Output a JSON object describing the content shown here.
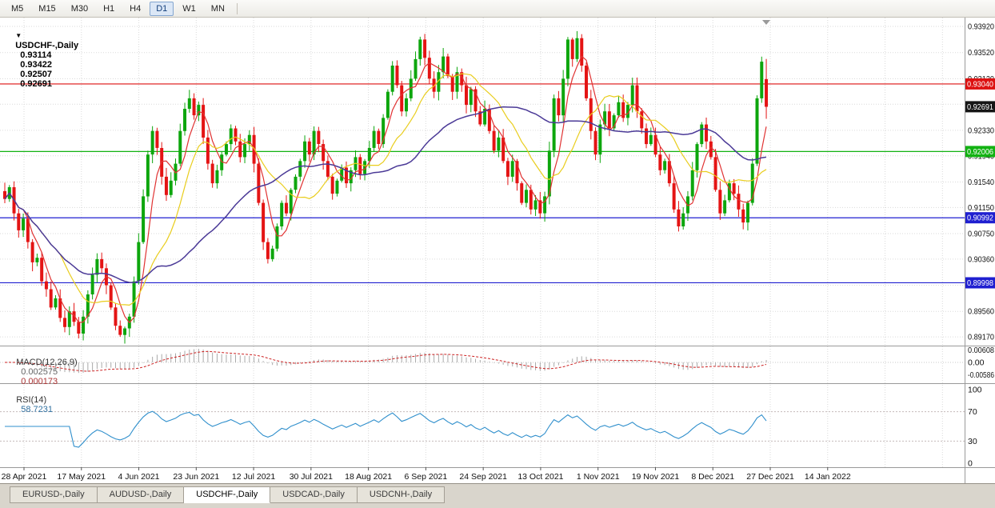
{
  "toolbar": {
    "timeframes": [
      {
        "label": "M5",
        "active": false
      },
      {
        "label": "M15",
        "active": false
      },
      {
        "label": "M30",
        "active": false
      },
      {
        "label": "H1",
        "active": false
      },
      {
        "label": "H4",
        "active": false
      },
      {
        "label": "D1",
        "active": true
      },
      {
        "label": "W1",
        "active": false
      },
      {
        "label": "MN",
        "active": false
      }
    ]
  },
  "title": {
    "triangle": "▼",
    "symbol": "USDCHF-,Daily",
    "open": "0.93114",
    "high": "0.93422",
    "low": "0.92507",
    "close": "0.92691"
  },
  "price_axis": {
    "ticks": [
      "0.93920",
      "0.93520",
      "0.93120",
      "0.92730",
      "0.92330",
      "0.91940",
      "0.91540",
      "0.91150",
      "0.90750",
      "0.90360",
      "0.89960",
      "0.89560",
      "0.89170"
    ],
    "badges": [
      {
        "label": "0.93040",
        "price": 0.9304,
        "color": "#dd1111",
        "name": "resistance-line-badge"
      },
      {
        "label": "0.92006",
        "price": 0.92006,
        "color": "#12b212",
        "name": "support-line-badge-green"
      },
      {
        "label": "0.90992",
        "price": 0.90992,
        "color": "#1f1fd0",
        "name": "support-line-badge-blue-1"
      },
      {
        "label": "0.89998",
        "price": 0.89998,
        "color": "#1f1fd0",
        "name": "support-line-badge-blue-2"
      },
      {
        "label": "0.92691",
        "price": 0.92691,
        "color": "#151515",
        "name": "current-price-badge"
      }
    ]
  },
  "dates": [
    "28 Apr 2021",
    "17 May 2021",
    "4 Jun 2021",
    "23 Jun 2021",
    "12 Jul 2021",
    "30 Jul 2021",
    "18 Aug 2021",
    "6 Sep 2021",
    "24 Sep 2021",
    "13 Oct 2021",
    "1 Nov 2021",
    "19 Nov 2021",
    "8 Dec 2021",
    "27 Dec 2021",
    "14 Jan 2022"
  ],
  "chart_data": {
    "type": "candlestick",
    "symbol": "USDCHF-",
    "timeframe": "Daily",
    "title": "USDCHF-,Daily",
    "ylim": [
      0.8904,
      0.94055
    ],
    "first_open": 0.914,
    "closes": [
      0.9128,
      0.9146,
      0.9106,
      0.908,
      0.9098,
      0.9062,
      0.9031,
      0.9038,
      0.9002,
      0.899,
      0.8962,
      0.8976,
      0.8946,
      0.8932,
      0.8956,
      0.894,
      0.8922,
      0.8948,
      0.8982,
      0.9012,
      0.9036,
      0.9022,
      0.8996,
      0.8962,
      0.8934,
      0.892,
      0.893,
      0.8948,
      0.9002,
      0.9062,
      0.9132,
      0.9196,
      0.9232,
      0.9206,
      0.9162,
      0.9134,
      0.9156,
      0.9182,
      0.9232,
      0.9266,
      0.9282,
      0.9256,
      0.9272,
      0.9222,
      0.9182,
      0.9152,
      0.9172,
      0.9196,
      0.9212,
      0.9236,
      0.9216,
      0.9192,
      0.9212,
      0.9226,
      0.9182,
      0.9122,
      0.9062,
      0.9036,
      0.9052,
      0.9086,
      0.9122,
      0.9106,
      0.9142,
      0.9162,
      0.9186,
      0.9216,
      0.9196,
      0.9232,
      0.9212,
      0.9186,
      0.9162,
      0.9136,
      0.9156,
      0.9176,
      0.9152,
      0.9172,
      0.9192,
      0.9166,
      0.9186,
      0.9206,
      0.9232,
      0.9212,
      0.9252,
      0.9292,
      0.9332,
      0.9302,
      0.9262,
      0.9282,
      0.9312,
      0.9342,
      0.9372,
      0.9344,
      0.9312,
      0.9292,
      0.9322,
      0.9346,
      0.9316,
      0.9292,
      0.9322,
      0.9302,
      0.9272,
      0.9296,
      0.9262,
      0.9242,
      0.9266,
      0.9232,
      0.9202,
      0.9222,
      0.9186,
      0.9162,
      0.9186,
      0.9152,
      0.9122,
      0.9142,
      0.9112,
      0.9126,
      0.9106,
      0.9132,
      0.9202,
      0.9282,
      0.9256,
      0.9312,
      0.9372,
      0.9342,
      0.9374,
      0.9332,
      0.9282,
      0.9232,
      0.9196,
      0.9242,
      0.9262,
      0.9236,
      0.9256,
      0.9276,
      0.9252,
      0.9272,
      0.9302,
      0.9262,
      0.9236,
      0.9212,
      0.9226,
      0.9196,
      0.9172,
      0.9186,
      0.9152,
      0.9112,
      0.9086,
      0.9106,
      0.9132,
      0.9172,
      0.9212,
      0.9242,
      0.9216,
      0.9192,
      0.9142,
      0.9106,
      0.9126,
      0.9152,
      0.9136,
      0.9112,
      0.9092,
      0.9122,
      0.9182,
      0.9282,
      0.9338,
      0.92691
    ],
    "last_candle": {
      "open": 0.93114,
      "high": 0.93422,
      "low": 0.92507,
      "close": 0.92691
    },
    "horizontal_lines": [
      {
        "price": 0.9304,
        "color": "#dd1111"
      },
      {
        "price": 0.92006,
        "color": "#12b212"
      },
      {
        "price": 0.90992,
        "color": "#1f1fd0"
      },
      {
        "price": 0.89998,
        "color": "#1f1fd0"
      }
    ],
    "moving_averages": [
      {
        "period": 5,
        "color": "#e03232"
      },
      {
        "period": 13,
        "color": "#e9cd1d"
      },
      {
        "period": 34,
        "color": "#4b3a97"
      }
    ],
    "bull_color": "#0da60d",
    "bear_color": "#e41414"
  },
  "indicators": {
    "macd": {
      "name": "MACD(12,26,9)",
      "value_main": "0.002575",
      "value_signal": "0.000173",
      "fast": 12,
      "slow": 26,
      "signal": 9,
      "axis_labels": [
        "0.00608",
        "0.00",
        "-0.00586"
      ],
      "histogram_color": "#a9a9a9",
      "signal_color": "#cc2222"
    },
    "rsi": {
      "name": "RSI(14)",
      "value": "58.7231",
      "period": 14,
      "axis_labels": [
        "100",
        "70",
        "30",
        "0"
      ],
      "levels": [
        70,
        30
      ],
      "line_color": "#2f8fcc"
    }
  },
  "tabs": [
    {
      "label": "EURUSD-,Daily",
      "active": false
    },
    {
      "label": "AUDUSD-,Daily",
      "active": false
    },
    {
      "label": "USDCHF-,Daily",
      "active": true
    },
    {
      "label": "USDCAD-,Daily",
      "active": false
    },
    {
      "label": "USDCNH-,Daily",
      "active": false
    }
  ]
}
